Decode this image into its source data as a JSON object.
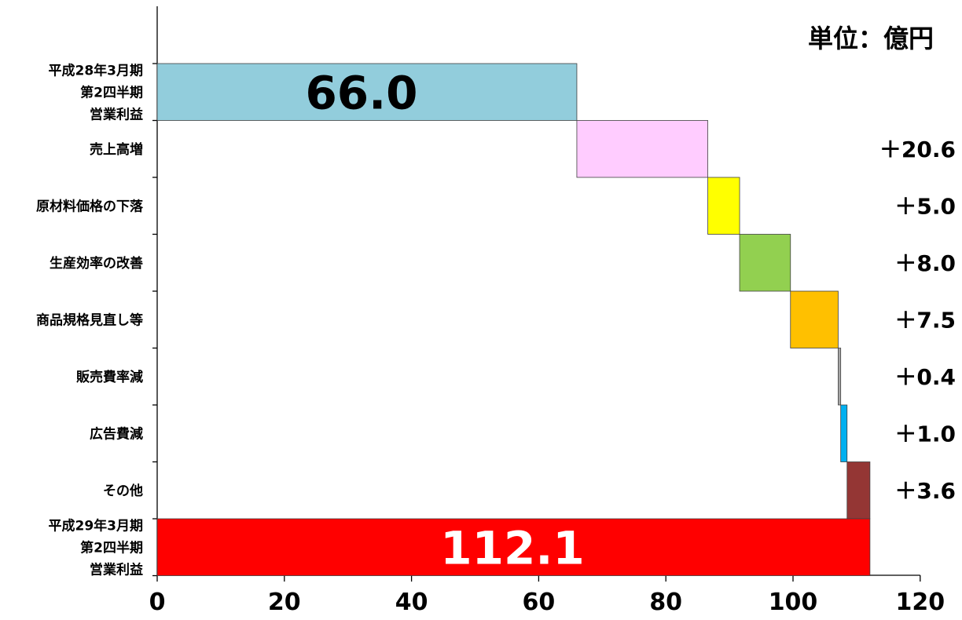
{
  "chart_data": {
    "type": "bar",
    "orientation": "horizontal-waterfall",
    "unit": "単位：億円",
    "categories": [
      [
        "平成28年3月期",
        "第2四半期",
        "営業利益"
      ],
      [
        "売上高増"
      ],
      [
        "原材料価格の下落"
      ],
      [
        "生産効率の改善"
      ],
      [
        "商品規格見直し等"
      ],
      [
        "販売費率減"
      ],
      [
        "広告費減"
      ],
      [
        "その他"
      ],
      [
        "平成29年3月期",
        "第2四半期",
        "営業利益"
      ]
    ],
    "values": [
      66.0,
      20.6,
      5.0,
      8.0,
      7.5,
      0.4,
      1.0,
      3.6,
      112.1
    ],
    "value_labels": [
      "66.0",
      "＋20.6",
      "＋5.0",
      "＋8.0",
      "＋7.5",
      "＋0.4",
      "＋1.0",
      "＋3.6",
      "112.1"
    ],
    "bar_kind": [
      "total",
      "delta",
      "delta",
      "delta",
      "delta",
      "delta",
      "delta",
      "delta",
      "total"
    ],
    "colors": [
      "#92CDDC",
      "#FFCCFF",
      "#FFFF00",
      "#92D050",
      "#FFC000",
      "#A6A6A6",
      "#00B0F0",
      "#943634",
      "#FF0000"
    ],
    "label_colors": [
      "#000000",
      "#000000",
      "#000000",
      "#000000",
      "#000000",
      "#000000",
      "#000000",
      "#000000",
      "#FFFFFF"
    ],
    "xlim": [
      0,
      120
    ],
    "xticks": [
      "0",
      "20",
      "40",
      "60",
      "80",
      "100",
      "120"
    ],
    "xtick_values": [
      0,
      20,
      40,
      60,
      80,
      100,
      120
    ],
    "grid": false,
    "legend": "none"
  }
}
